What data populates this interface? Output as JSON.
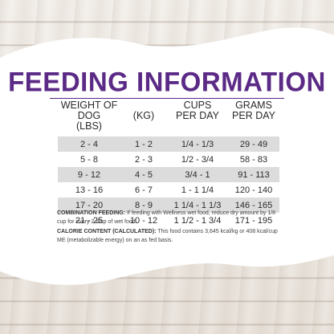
{
  "title": "FEEDING INFORMATION",
  "colors": {
    "title": "#5b2a86",
    "row_shade": "#dcdcdc",
    "card": "#ffffff"
  },
  "headers": {
    "lbs": [
      "WEIGHT OF DOG",
      "(LBS)"
    ],
    "kg": [
      "(KG)"
    ],
    "cups": [
      "CUPS",
      "PER DAY"
    ],
    "grams": [
      "GRAMS",
      "PER DAY"
    ]
  },
  "rows": [
    {
      "lbs": "2 - 4",
      "kg": "1 - 2",
      "cups": "1/4 - 1/3",
      "grams": "29 - 49"
    },
    {
      "lbs": "5 - 8",
      "kg": "2 - 3",
      "cups": "1/2 - 3/4",
      "grams": "58 - 83"
    },
    {
      "lbs": "9 - 12",
      "kg": "4 - 5",
      "cups": "3/4 - 1",
      "grams": "91 - 113"
    },
    {
      "lbs": "13 - 16",
      "kg": "6 - 7",
      "cups": "1 - 1 1/4",
      "grams": "120 - 140"
    },
    {
      "lbs": "17 - 20",
      "kg": "8 - 9",
      "cups": "1 1/4 - 1 1/3",
      "grams": "146 - 165"
    },
    {
      "lbs": "21 - 25",
      "kg": "10 - 12",
      "cups": "1 1/2 - 1 3/4",
      "grams": "171 - 195"
    }
  ],
  "notes": {
    "combination_label": "COMBINATION FEEDING:",
    "combination_text": " If feeding with Wellness wet food, reduce dry amount by 1/8 cup for every 2 tbsp of wet food.",
    "calorie_label": "CALORIE CONTENT (CALCULATED):",
    "calorie_text": " This food contains 3,645 kcal/kg or 408 kcal/cup ME (metabolizable energy) on an as fed basis."
  }
}
